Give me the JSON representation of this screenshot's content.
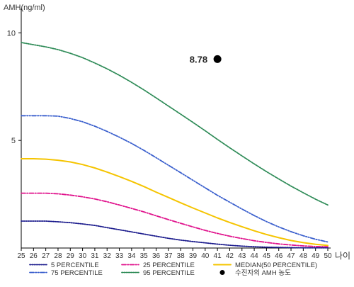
{
  "chart_data": {
    "type": "line",
    "ylabel": "AMH(ng/ml)",
    "xlabel": "나이",
    "xlim": [
      25,
      50
    ],
    "ylim": [
      0,
      11
    ],
    "x_ticks": [
      25,
      26,
      27,
      28,
      29,
      30,
      31,
      32,
      33,
      34,
      35,
      36,
      37,
      38,
      39,
      40,
      41,
      42,
      43,
      44,
      45,
      46,
      47,
      48,
      49,
      50
    ],
    "y_ticks": [
      5,
      10
    ],
    "x": [
      25,
      26,
      27,
      28,
      29,
      30,
      31,
      32,
      33,
      34,
      35,
      36,
      37,
      38,
      39,
      40,
      41,
      42,
      43,
      44,
      45,
      46,
      47,
      48,
      49,
      50
    ],
    "series": [
      {
        "name": "5 PERCENTILE",
        "color": "#1a1a8c",
        "dash": "dotted",
        "values": [
          1.25,
          1.25,
          1.25,
          1.22,
          1.18,
          1.12,
          1.05,
          0.95,
          0.85,
          0.75,
          0.65,
          0.55,
          0.45,
          0.37,
          0.3,
          0.24,
          0.18,
          0.13,
          0.09,
          0.06,
          0.04,
          0.03,
          0.02,
          0.01,
          0.01,
          0.01
        ]
      },
      {
        "name": "25 PERCENTILE",
        "color": "#e0128c",
        "dash": "dashdot",
        "values": [
          2.55,
          2.55,
          2.55,
          2.52,
          2.46,
          2.38,
          2.28,
          2.15,
          2.0,
          1.84,
          1.68,
          1.5,
          1.32,
          1.15,
          0.98,
          0.82,
          0.68,
          0.55,
          0.44,
          0.34,
          0.26,
          0.19,
          0.14,
          0.1,
          0.07,
          0.06
        ]
      },
      {
        "name": "MEDIAN(50 PERCENTILE)",
        "color": "#f5c400",
        "dash": "solid",
        "values": [
          4.15,
          4.15,
          4.13,
          4.08,
          4.0,
          3.88,
          3.72,
          3.53,
          3.32,
          3.1,
          2.86,
          2.6,
          2.35,
          2.1,
          1.86,
          1.63,
          1.4,
          1.19,
          0.99,
          0.8,
          0.63,
          0.48,
          0.35,
          0.25,
          0.17,
          0.12
        ]
      },
      {
        "name": "75 PERCENTILE",
        "color": "#3a5fcd",
        "dash": "dashdotdot",
        "values": [
          6.15,
          6.15,
          6.15,
          6.13,
          6.02,
          5.87,
          5.66,
          5.42,
          5.15,
          4.86,
          4.54,
          4.2,
          3.85,
          3.5,
          3.15,
          2.8,
          2.45,
          2.13,
          1.81,
          1.51,
          1.23,
          0.98,
          0.76,
          0.57,
          0.41,
          0.28
        ]
      },
      {
        "name": "95 PERCENTILE",
        "color": "#2e8b57",
        "dash": "dotted",
        "values": [
          9.55,
          9.45,
          9.35,
          9.22,
          9.05,
          8.85,
          8.6,
          8.33,
          8.03,
          7.7,
          7.35,
          6.98,
          6.6,
          6.22,
          5.84,
          5.45,
          5.05,
          4.66,
          4.28,
          3.91,
          3.55,
          3.21,
          2.88,
          2.57,
          2.27,
          2.0
        ]
      }
    ],
    "points": [
      {
        "name": "수진자의 AMH 농도",
        "x": 41,
        "y": 8.78,
        "label": "8.78",
        "color": "#000000"
      }
    ],
    "legend": {
      "placement": "bottom",
      "entries": [
        {
          "label": "5 PERCENTILE",
          "color": "#1a1a8c",
          "dash": "dotted",
          "kind": "line"
        },
        {
          "label": "25 PERCENTILE",
          "color": "#e0128c",
          "dash": "dashdot",
          "kind": "line"
        },
        {
          "label": "MEDIAN(50 PERCENTILE)",
          "color": "#f5c400",
          "dash": "solid",
          "kind": "line"
        },
        {
          "label": "75 PERCENTILE",
          "color": "#3a5fcd",
          "dash": "dashdotdot",
          "kind": "line"
        },
        {
          "label": "95 PERCENTILE",
          "color": "#2e8b57",
          "dash": "dotted",
          "kind": "line"
        },
        {
          "label": "수진자의 AMH 농도",
          "color": "#000000",
          "kind": "marker"
        }
      ]
    },
    "grid": false
  }
}
